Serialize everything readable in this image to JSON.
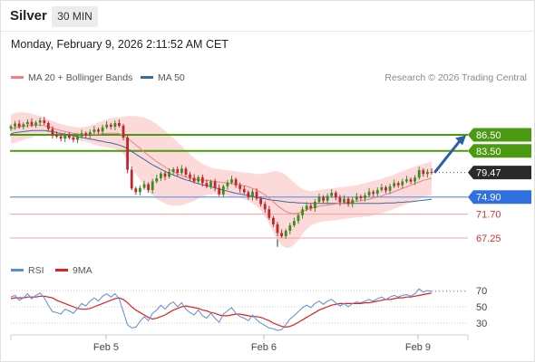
{
  "header": {
    "title": "Silver",
    "timeframe": "30 MIN",
    "datetime": "Monday, February 9, 2026 2:11:52 AM CET"
  },
  "legend": {
    "ma20": {
      "label": "MA 20 + Bollinger Bands",
      "color": "#f08080"
    },
    "ma50": {
      "label": "MA 50",
      "color": "#3b6aa0"
    },
    "credit": "Research © 2026 Trading Central"
  },
  "rsi_legend": {
    "rsi": {
      "label": "RSI",
      "color": "#5b8bd9"
    },
    "ma9": {
      "label": "9MA",
      "color": "#e02020"
    }
  },
  "chart_data": [
    {
      "type": "candlestick",
      "title": "Silver",
      "timeframe": "30 MIN",
      "x_ticks": [
        "Feb 5",
        "Feb 6",
        "Feb 9"
      ],
      "levels": [
        {
          "value": 86.5,
          "label": "86.50",
          "kind": "resistance",
          "color": "#4c9a12"
        },
        {
          "value": 83.5,
          "label": "83.50",
          "kind": "resistance",
          "color": "#4c9a12"
        },
        {
          "value": 79.47,
          "label": "79.47",
          "kind": "last",
          "color": "#333333"
        },
        {
          "value": 74.9,
          "label": "74.90",
          "kind": "pivot",
          "color": "#2f6fe0"
        },
        {
          "value": 71.7,
          "label": "71.70",
          "kind": "support",
          "color": "#e03030"
        },
        {
          "value": 67.25,
          "label": "67.25",
          "kind": "support",
          "color": "#e03030"
        }
      ],
      "ylim": [
        65.5,
        90.8
      ],
      "colors": {
        "up": "#3d8b1c",
        "down": "#c0272d",
        "band": "#fbd4d4",
        "ma20": "#f08080",
        "ma50": "#3b6aa0",
        "arrow": "#2a5fa8"
      },
      "close": [
        88.1,
        88.6,
        88.0,
        88.5,
        88.9,
        88.3,
        88.8,
        89.2,
        88.7,
        87.6,
        86.5,
        86.2,
        85.8,
        86.4,
        86.0,
        85.6,
        86.2,
        86.8,
        86.4,
        87.0,
        87.5,
        87.1,
        87.9,
        88.4,
        88.0,
        88.7,
        88.2,
        86.0,
        80.0,
        76.5,
        75.8,
        76.6,
        77.3,
        76.2,
        77.8,
        78.4,
        79.3,
        78.7,
        79.6,
        80.1,
        79.4,
        80.2,
        79.1,
        78.5,
        77.8,
        78.6,
        77.5,
        76.9,
        77.8,
        76.6,
        75.4,
        76.9,
        77.6,
        78.2,
        77.1,
        76.4,
        75.8,
        74.9,
        75.9,
        74.6,
        73.6,
        72.6,
        71.0,
        69.8,
        68.2,
        67.6,
        68.6,
        69.6,
        70.4,
        71.5,
        72.6,
        73.3,
        72.8,
        74.0,
        74.9,
        74.2,
        75.1,
        75.7,
        74.8,
        73.9,
        74.6,
        73.6,
        74.4,
        75.0,
        74.7,
        75.2,
        75.9,
        75.5,
        76.2,
        76.7,
        76.1,
        76.9,
        77.5,
        77.1,
        77.8,
        78.2,
        77.8,
        78.5,
        79.9,
        79.2,
        79.6,
        79.47
      ],
      "ma20": [
        87.6,
        87.8,
        88.0,
        88.1,
        88.2,
        88.2,
        88.3,
        88.3,
        88.2,
        88.0,
        87.8,
        87.5,
        87.3,
        87.1,
        86.9,
        86.8,
        86.7,
        86.6,
        86.6,
        86.6,
        86.6,
        86.6,
        86.7,
        86.8,
        86.8,
        86.8,
        86.7,
        86.4,
        85.9,
        85.3,
        84.6,
        84.0,
        83.3,
        82.7,
        82.1,
        81.5,
        81.0,
        80.5,
        80.0,
        79.6,
        79.2,
        78.9,
        78.6,
        78.4,
        78.2,
        78.1,
        78.0,
        78.0,
        77.9,
        77.8,
        77.7,
        77.6,
        77.5,
        77.4,
        77.3,
        77.2,
        77.0,
        76.8,
        76.5,
        76.2,
        75.8,
        75.3,
        74.7,
        74.0,
        73.3,
        72.7,
        72.2,
        71.9,
        71.8,
        71.9,
        72.2,
        72.5,
        72.8,
        73.0,
        73.2,
        73.3,
        73.4,
        73.5,
        73.6,
        73.7,
        73.8,
        73.9,
        74.0,
        74.1,
        74.2,
        74.4,
        74.5,
        74.7,
        74.9,
        75.1,
        75.4,
        75.6,
        75.9,
        76.2,
        76.5,
        76.8,
        77.1,
        77.4,
        77.7,
        78.0,
        78.2,
        78.4
      ],
      "ma50": [
        86.7,
        86.9,
        87.0,
        87.1,
        87.2,
        87.3,
        87.3,
        87.3,
        87.3,
        87.2,
        87.1,
        86.9,
        86.8,
        86.6,
        86.5,
        86.3,
        86.2,
        86.0,
        85.9,
        85.7,
        85.6,
        85.4,
        85.3,
        85.1,
        85.0,
        84.8,
        84.6,
        84.3,
        83.9,
        83.4,
        82.9,
        82.4,
        81.9,
        81.4,
        80.9,
        80.5,
        80.1,
        79.7,
        79.3,
        79.0,
        78.7,
        78.4,
        78.1,
        77.9,
        77.6,
        77.4,
        77.2,
        77.0,
        76.8,
        76.6,
        76.4,
        76.2,
        76.0,
        75.8,
        75.6,
        75.5,
        75.3,
        75.2,
        75.0,
        74.9,
        74.7,
        74.6,
        74.4,
        74.3,
        74.2,
        74.1,
        74.0,
        73.9,
        73.9,
        73.8,
        73.8,
        73.7,
        73.7,
        73.7,
        73.7,
        73.7,
        73.7,
        73.7,
        73.7,
        73.7,
        73.7,
        73.7,
        73.7,
        73.7,
        73.7,
        73.7,
        73.7,
        73.7,
        73.7,
        73.7,
        73.8,
        73.8,
        73.8,
        73.9,
        73.9,
        74.0,
        74.0,
        74.1,
        74.2,
        74.3,
        74.4,
        74.5
      ],
      "bb_upper": [
        90.3,
        90.6,
        90.7,
        90.7,
        90.6,
        90.4,
        90.2,
        90.0,
        89.7,
        89.4,
        89.1,
        88.8,
        88.5,
        88.3,
        88.1,
        88.0,
        87.9,
        87.9,
        88.0,
        88.2,
        88.5,
        88.8,
        89.1,
        89.4,
        89.6,
        89.7,
        89.8,
        89.9,
        90.0,
        90.0,
        90.0,
        89.9,
        89.7,
        89.4,
        89.0,
        88.5,
        87.9,
        87.3,
        86.6,
        85.9,
        85.1,
        84.4,
        83.6,
        82.9,
        82.2,
        81.6,
        81.1,
        80.7,
        80.4,
        80.2,
        80.1,
        80.0,
        79.9,
        79.8,
        79.7,
        79.6,
        79.5,
        79.4,
        79.3,
        79.2,
        79.2,
        79.3,
        79.5,
        79.7,
        79.7,
        79.5,
        79.0,
        78.3,
        77.6,
        76.9,
        76.4,
        76.1,
        76.0,
        76.1,
        76.2,
        76.3,
        76.4,
        76.5,
        76.6,
        76.7,
        76.8,
        76.9,
        77.0,
        77.1,
        77.3,
        77.5,
        77.7,
        77.9,
        78.1,
        78.3,
        78.6,
        78.8,
        79.1,
        79.4,
        79.7,
        80.0,
        80.3,
        80.6,
        80.9,
        81.1,
        81.3,
        81.5
      ],
      "bb_lower": [
        84.9,
        85.0,
        85.3,
        85.5,
        85.8,
        86.0,
        86.4,
        86.6,
        86.7,
        86.6,
        86.5,
        86.2,
        86.1,
        85.9,
        85.7,
        85.6,
        85.5,
        85.3,
        85.2,
        85.0,
        84.7,
        84.4,
        84.3,
        84.2,
        84.0,
        83.9,
        83.6,
        82.9,
        81.8,
        80.6,
        79.2,
        78.1,
        76.9,
        76.0,
        75.2,
        74.5,
        74.1,
        73.7,
        73.4,
        73.3,
        73.3,
        73.4,
        73.6,
        73.9,
        74.2,
        74.6,
        74.9,
        75.3,
        75.4,
        75.4,
        75.3,
        75.2,
        75.1,
        75.0,
        74.9,
        74.8,
        74.5,
        74.2,
        73.7,
        73.2,
        72.4,
        71.3,
        69.9,
        68.3,
        66.9,
        65.9,
        65.4,
        65.5,
        66.0,
        66.9,
        68.0,
        68.9,
        69.6,
        69.9,
        70.2,
        70.3,
        70.4,
        70.5,
        70.6,
        70.7,
        70.8,
        70.9,
        71.0,
        71.1,
        71.1,
        71.3,
        71.3,
        71.5,
        71.7,
        71.9,
        72.2,
        72.4,
        72.7,
        73.0,
        73.3,
        73.6,
        73.9,
        74.2,
        74.5,
        74.9,
        75.1,
        75.3
      ]
    },
    {
      "type": "line",
      "title": "RSI",
      "ylim": [
        17,
        86
      ],
      "y_ticks": [
        70,
        50,
        30
      ],
      "series": [
        {
          "name": "RSI",
          "color": "#5b8bd9",
          "values": [
            62,
            64,
            58,
            61,
            66,
            60,
            64,
            67,
            61,
            52,
            44,
            43,
            41,
            47,
            45,
            42,
            48,
            54,
            51,
            57,
            61,
            57,
            63,
            66,
            62,
            66,
            60,
            44,
            28,
            24,
            25,
            32,
            38,
            33,
            42,
            46,
            52,
            47,
            53,
            56,
            50,
            55,
            47,
            43,
            40,
            46,
            39,
            36,
            42,
            36,
            31,
            41,
            45,
            49,
            42,
            38,
            36,
            33,
            40,
            34,
            30,
            27,
            24,
            23,
            21,
            22,
            28,
            35,
            39,
            44,
            49,
            52,
            49,
            54,
            57,
            53,
            57,
            59,
            55,
            51,
            54,
            50,
            54,
            56,
            55,
            57,
            59,
            57,
            60,
            62,
            59,
            62,
            64,
            62,
            64,
            65,
            63,
            66,
            72,
            68,
            70,
            69
          ]
        },
        {
          "name": "9MA",
          "color": "#e02020",
          "values": [
            60,
            61,
            61,
            61,
            62,
            62,
            62,
            63,
            63,
            62,
            61,
            58,
            56,
            54,
            52,
            50,
            48,
            47,
            47,
            48,
            50,
            52,
            54,
            56,
            58,
            60,
            61,
            59,
            55,
            50,
            46,
            43,
            40,
            37,
            35,
            36,
            38,
            40,
            43,
            46,
            48,
            50,
            51,
            50,
            49,
            48,
            46,
            45,
            43,
            42,
            40,
            39,
            39,
            40,
            41,
            41,
            40,
            39,
            38,
            38,
            37,
            35,
            33,
            30,
            28,
            26,
            25,
            26,
            28,
            31,
            34,
            37,
            40,
            43,
            46,
            48,
            50,
            52,
            53,
            54,
            54,
            54,
            54,
            54,
            54,
            55,
            55,
            56,
            57,
            58,
            59,
            59,
            60,
            61,
            61,
            62,
            62,
            63,
            64,
            65,
            66,
            67
          ]
        }
      ]
    }
  ]
}
